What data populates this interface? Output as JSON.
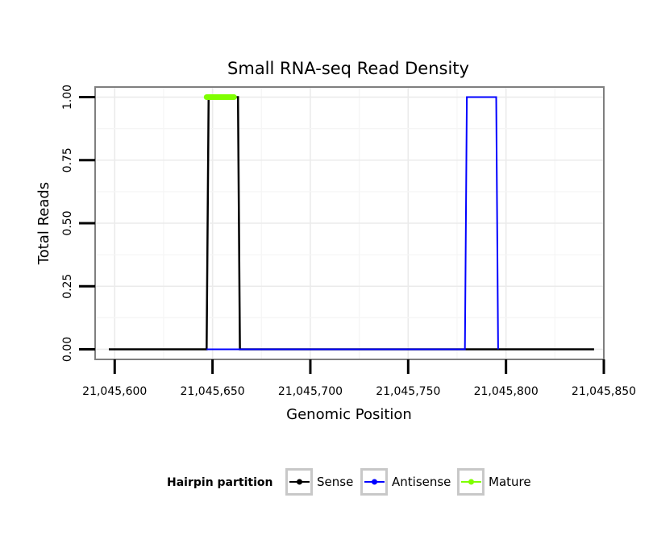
{
  "chart_data": {
    "type": "line",
    "title": "Small RNA-seq Read Density",
    "xlabel": "Genomic Position",
    "ylabel": "Total Reads",
    "xlim": [
      21045590,
      21045850
    ],
    "ylim": [
      -0.04,
      1.04
    ],
    "x_ticks": [
      21045600,
      21045650,
      21045700,
      21045750,
      21045800,
      21045850
    ],
    "x_tick_labels": [
      "21,045,600",
      "21,045,650",
      "21,045,700",
      "21,045,750",
      "21,045,800",
      "21,045,850"
    ],
    "y_ticks": [
      0,
      0.25,
      0.5,
      0.75,
      1
    ],
    "y_tick_labels": [
      "0.00",
      "0.25",
      "0.50",
      "0.75",
      "1.00"
    ],
    "grid": true,
    "legend": {
      "title": "Hairpin partition",
      "position": "bottom"
    },
    "series": [
      {
        "name": "Sense",
        "color": "#000000",
        "width": 2.5,
        "x": [
          21045597,
          21045647,
          21045648,
          21045663,
          21045664,
          21045845
        ],
        "y": [
          0,
          0,
          1,
          1,
          0,
          0
        ]
      },
      {
        "name": "Antisense",
        "color": "#0000ff",
        "width": 2,
        "x": [
          21045647,
          21045664,
          21045779,
          21045780,
          21045795,
          21045796
        ],
        "y": [
          0,
          0,
          0,
          1,
          1,
          0
        ]
      },
      {
        "name": "Mature",
        "color": "#7fff00",
        "width": 7,
        "x": [
          21045647,
          21045661
        ],
        "y": [
          1,
          1
        ]
      }
    ]
  }
}
